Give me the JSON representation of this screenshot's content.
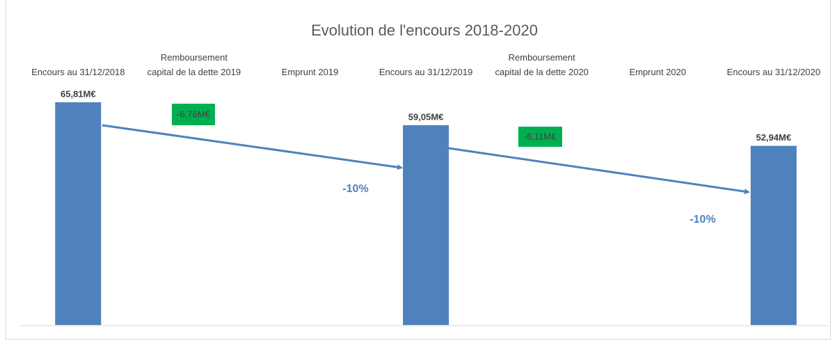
{
  "chart_data": {
    "type": "bar",
    "title": "Evolution de l'encours 2018-2020",
    "categories": [
      "Encours au 31/12/2018",
      "Remboursement\ncapital de la dette 2019",
      "Emprunt 2019",
      "Encours au 31/12/2019",
      "Remboursement\ncapital de la dette 2020",
      "Emprunt 2020",
      "Encours au 31/12/2020"
    ],
    "values": [
      65.81,
      null,
      null,
      59.05,
      null,
      null,
      52.94
    ],
    "value_labels": [
      "65,81M€",
      null,
      null,
      "59,05M€",
      null,
      null,
      "52,94M€"
    ],
    "color": "#4f81bd",
    "annotations": [
      "-6,76M€",
      "-6,11M€",
      "-10%",
      "-10%"
    ]
  }
}
